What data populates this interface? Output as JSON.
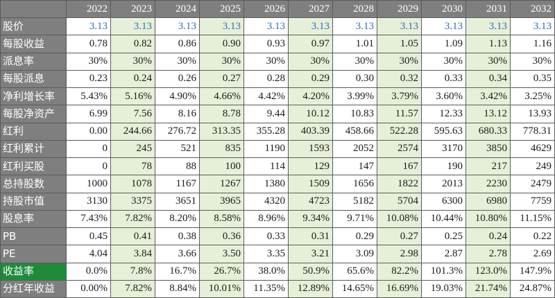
{
  "table": {
    "years": [
      "2022",
      "2023",
      "2024",
      "2025",
      "2026",
      "2027",
      "2028",
      "2029",
      "2030",
      "2031",
      "2032"
    ],
    "rows": [
      {
        "label": "股价",
        "values": [
          "3.13",
          "3.13",
          "3.13",
          "3.13",
          "3.13",
          "3.13",
          "3.13",
          "3.13",
          "3.13",
          "3.13",
          "3.13"
        ]
      },
      {
        "label": "每股收益",
        "values": [
          "0.78",
          "0.82",
          "0.86",
          "0.90",
          "0.93",
          "0.97",
          "1.01",
          "1.05",
          "1.09",
          "1.13",
          "1.16"
        ]
      },
      {
        "label": "派息率",
        "values": [
          "30%",
          "30%",
          "30%",
          "30%",
          "30%",
          "30%",
          "30%",
          "30%",
          "30%",
          "30%",
          "30%"
        ]
      },
      {
        "label": "每股派息",
        "values": [
          "0.23",
          "0.24",
          "0.26",
          "0.27",
          "0.28",
          "0.29",
          "0.30",
          "0.32",
          "0.33",
          "0.34",
          "0.35"
        ]
      },
      {
        "label": "净利增长率",
        "values": [
          "5.43%",
          "5.16%",
          "4.90%",
          "4.66%",
          "4.42%",
          "4.20%",
          "3.99%",
          "3.79%",
          "3.60%",
          "3.42%",
          "3.25%"
        ]
      },
      {
        "label": "每股净资产",
        "values": [
          "6.99",
          "7.56",
          "8.16",
          "8.78",
          "9.44",
          "10.12",
          "10.83",
          "11.57",
          "12.33",
          "13.12",
          "13.93"
        ]
      },
      {
        "label": "红利",
        "values": [
          "0.00",
          "244.66",
          "276.72",
          "313.35",
          "355.28",
          "403.39",
          "458.66",
          "522.28",
          "595.63",
          "680.33",
          "778.31"
        ]
      },
      {
        "label": "红利累计",
        "values": [
          "0",
          "245",
          "521",
          "835",
          "1190",
          "1593",
          "2052",
          "2574",
          "3170",
          "3850",
          "4629"
        ]
      },
      {
        "label": "红利买股",
        "values": [
          "0",
          "78",
          "88",
          "100",
          "114",
          "129",
          "147",
          "167",
          "190",
          "217",
          "249"
        ]
      },
      {
        "label": "总持股数",
        "values": [
          "1000",
          "1078",
          "1167",
          "1267",
          "1380",
          "1509",
          "1656",
          "1822",
          "2013",
          "2230",
          "2479"
        ]
      },
      {
        "label": "持股市值",
        "values": [
          "3130",
          "3375",
          "3651",
          "3965",
          "4320",
          "4723",
          "5182",
          "5704",
          "6300",
          "6980",
          "7759"
        ]
      },
      {
        "label": "股息率",
        "values": [
          "7.43%",
          "7.82%",
          "8.20%",
          "8.58%",
          "8.96%",
          "9.34%",
          "9.71%",
          "10.08%",
          "10.44%",
          "10.80%",
          "11.15%"
        ]
      },
      {
        "label": "PB",
        "values": [
          "0.45",
          "0.41",
          "0.38",
          "0.36",
          "0.33",
          "0.31",
          "0.29",
          "0.27",
          "0.25",
          "0.24",
          "0.22"
        ]
      },
      {
        "label": "PE",
        "values": [
          "4.04",
          "3.84",
          "3.66",
          "3.50",
          "3.35",
          "3.21",
          "3.09",
          "2.98",
          "2.87",
          "2.78",
          "2.69"
        ]
      },
      {
        "label": "收益率",
        "values": [
          "0.0%",
          "7.8%",
          "16.7%",
          "26.7%",
          "38.0%",
          "50.9%",
          "65.6%",
          "82.2%",
          "101.3%",
          "123.0%",
          "147.9%"
        ]
      },
      {
        "label": "分红年收益",
        "values": [
          "0.00%",
          "7.82%",
          "8.84%",
          "10.01%",
          "11.35%",
          "12.89%",
          "14.65%",
          "16.69%",
          "19.03%",
          "21.74%",
          "24.87%"
        ]
      }
    ]
  },
  "colors": {
    "header_bg": "#7f7f7f",
    "label_bg": "#7f7f7f",
    "green_label_bg": "#1f8b3a",
    "shade_bg": "#e6f0d8",
    "price_text": "#2a6fb8"
  }
}
